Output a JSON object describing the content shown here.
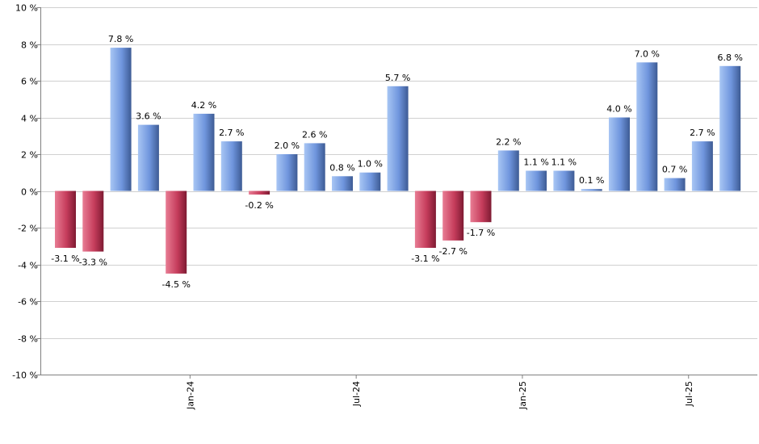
{
  "chart_data": {
    "type": "bar",
    "values": [
      -3.1,
      -3.3,
      7.8,
      3.6,
      -4.5,
      4.2,
      2.7,
      -0.2,
      2.0,
      2.6,
      0.8,
      1.0,
      5.7,
      -3.1,
      -2.7,
      -1.7,
      2.2,
      1.1,
      1.1,
      0.1,
      4.0,
      7.0,
      0.7,
      2.7,
      6.8
    ],
    "value_suffix": " %",
    "ylim": [
      -10,
      10
    ],
    "yticks": [
      -10,
      -8,
      -6,
      -4,
      -2,
      0,
      2,
      4,
      6,
      8,
      10
    ],
    "ytick_labels": [
      "-10 %",
      "-8 %",
      "-6 %",
      "-4 %",
      "-2 %",
      "0 %",
      "2 %",
      "4 %",
      "6 %",
      "8 %",
      "10 %"
    ],
    "x_ticks": [
      {
        "after_bar": 4,
        "label": "Jan-24"
      },
      {
        "after_bar": 10,
        "label": "Jul-24"
      },
      {
        "after_bar": 16,
        "label": "Jan-25"
      },
      {
        "after_bar": 22,
        "label": "Jul-25"
      }
    ],
    "grid": true,
    "colors": {
      "positive": "#7fa3e6",
      "negative": "#c43c5a",
      "grid": "#d0d0d0",
      "axis": "#808080"
    }
  }
}
